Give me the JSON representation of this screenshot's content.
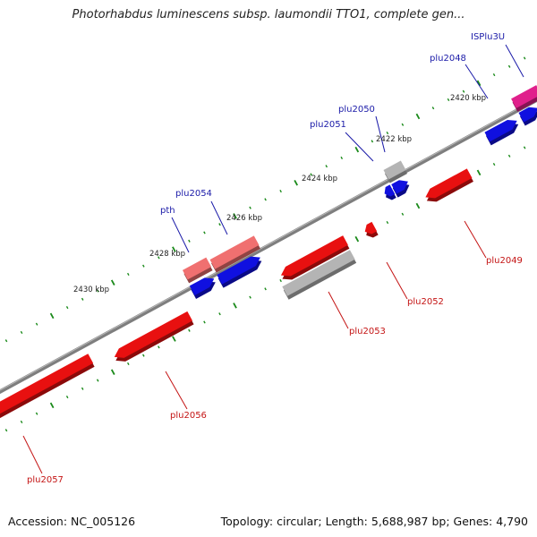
{
  "title": "Photorhabdus luminescens subsp. laumondii TTO1, complete gen...",
  "accession": "Accession: NC_005126",
  "summary": "Topology: circular; Length: 5,688,987 bp; Genes: 4,790",
  "colors": {
    "backbone": "#808080",
    "tick": "#1a8a1a",
    "plus_strand": "#1010e0",
    "minus_strand": "#e81010",
    "pseudo_pink": "#f07070",
    "insertion_seq": "#e0208c",
    "neutral": "#b4b4b4",
    "plus_label": "#1a1aa8",
    "minus_label": "#c41414"
  },
  "scale_labels": [
    "2420 kbp",
    "2422 kbp",
    "2424 kbp",
    "2426 kbp",
    "2428 kbp",
    "2430 kbp"
  ],
  "genes": [
    "ISPlu3U",
    "plu2048",
    "plu2050",
    "plu2051",
    "plu2054",
    "pth",
    "plu2049",
    "plu2052",
    "plu2053",
    "plu2056",
    "plu2057"
  ]
}
